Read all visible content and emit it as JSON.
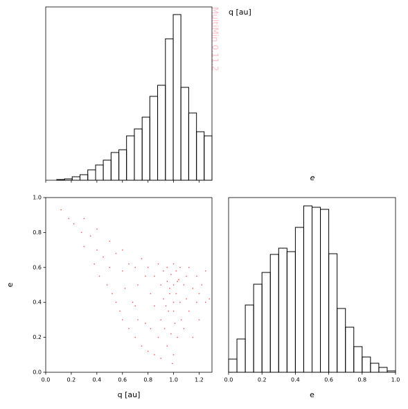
{
  "watermark": "MultiMin 0.11.2",
  "chart_data": [
    {
      "type": "histogram",
      "title": "q [au]",
      "bins": [
        0.086,
        0.147,
        0.207,
        0.268,
        0.329,
        0.39,
        0.45,
        0.511,
        0.572,
        0.632,
        0.693,
        0.754,
        0.814,
        0.875,
        0.936,
        0.997,
        1.057,
        1.118,
        1.179,
        1.239,
        1.3
      ],
      "values": [
        1,
        2,
        5,
        8,
        15,
        22,
        29,
        40,
        44,
        64,
        74,
        91,
        121,
        137,
        204,
        239,
        134,
        97,
        70,
        64
      ],
      "color": "#000000",
      "xlim": [
        0,
        1.3
      ],
      "ylim": [
        0,
        250
      ],
      "xticks": [
        0,
        0.2,
        0.4,
        0.6,
        0.8,
        1,
        1.2
      ],
      "tick_labels": false
    },
    {
      "type": "scatter",
      "xlabel": "q [au]",
      "ylabel": "e",
      "color": "#ff0000",
      "x": [
        0.12,
        0.18,
        0.22,
        0.28,
        0.3,
        0.35,
        0.38,
        0.4,
        0.42,
        0.45,
        0.48,
        0.5,
        0.52,
        0.55,
        0.55,
        0.58,
        0.6,
        0.6,
        0.62,
        0.65,
        0.65,
        0.68,
        0.7,
        0.7,
        0.72,
        0.72,
        0.75,
        0.75,
        0.78,
        0.78,
        0.8,
        0.8,
        0.82,
        0.82,
        0.85,
        0.85,
        0.85,
        0.88,
        0.88,
        0.9,
        0.9,
        0.9,
        0.92,
        0.92,
        0.93,
        0.95,
        0.95,
        0.95,
        0.96,
        0.97,
        0.98,
        0.98,
        1.0,
        1.0,
        1.0,
        1.0,
        1.01,
        1.02,
        1.02,
        1.03,
        1.04,
        1.05,
        1.05,
        1.06,
        1.08,
        1.08,
        1.1,
        1.1,
        1.12,
        1.12,
        1.15,
        1.15,
        1.18,
        1.18,
        1.2,
        1.2,
        1.22,
        1.25,
        1.25,
        1.28,
        0.99,
        1.0,
        0.97,
        1.03,
        0.94,
        0.3,
        0.5,
        0.7,
        0.6,
        0.4
      ],
      "y": [
        0.93,
        0.88,
        0.85,
        0.8,
        0.72,
        0.78,
        0.62,
        0.7,
        0.55,
        0.66,
        0.5,
        0.6,
        0.45,
        0.68,
        0.4,
        0.35,
        0.58,
        0.3,
        0.48,
        0.62,
        0.25,
        0.4,
        0.6,
        0.2,
        0.5,
        0.3,
        0.65,
        0.15,
        0.55,
        0.28,
        0.6,
        0.12,
        0.45,
        0.25,
        0.55,
        0.38,
        0.1,
        0.62,
        0.2,
        0.5,
        0.3,
        0.08,
        0.58,
        0.42,
        0.25,
        0.6,
        0.52,
        0.15,
        0.35,
        0.48,
        0.56,
        0.22,
        0.5,
        0.35,
        0.62,
        0.1,
        0.28,
        0.58,
        0.45,
        0.2,
        0.53,
        0.6,
        0.4,
        0.3,
        0.5,
        0.25,
        0.55,
        0.42,
        0.35,
        0.6,
        0.48,
        0.2,
        0.55,
        0.4,
        0.45,
        0.3,
        0.5,
        0.4,
        0.58,
        0.42,
        0.05,
        0.4,
        0.45,
        0.52,
        0.38,
        0.88,
        0.75,
        0.38,
        0.7,
        0.82
      ],
      "xlim": [
        0,
        1.3
      ],
      "ylim": [
        0,
        1
      ],
      "xticks": [
        {
          "value": 0,
          "label": "0.0"
        },
        0.2,
        0.4,
        0.6,
        0.8,
        {
          "value": 1,
          "label": "1.0"
        },
        1.2
      ],
      "yticks": [
        {
          "value": 0,
          "label": "0.0"
        },
        0.2,
        0.4,
        0.6,
        0.8,
        {
          "value": 1,
          "label": "1.0"
        }
      ]
    },
    {
      "type": "histogram",
      "title": "e",
      "xlabel": "e",
      "bins": [
        0,
        0.05,
        0.1,
        0.15,
        0.2,
        0.25,
        0.3,
        0.35,
        0.4,
        0.45,
        0.5,
        0.55,
        0.6,
        0.65,
        0.7,
        0.75,
        0.8,
        0.85,
        0.9,
        0.95,
        1.0
      ],
      "values": [
        19,
        48,
        97,
        127,
        144,
        170,
        179,
        174,
        209,
        240,
        238,
        235,
        171,
        92,
        65,
        37,
        22,
        13,
        7,
        2
      ],
      "color": "#000000",
      "xlim": [
        0,
        1
      ],
      "ylim": [
        0,
        252
      ],
      "xticks": [
        {
          "value": 0,
          "label": "0.0"
        },
        0.2,
        0.4,
        0.6,
        0.8,
        {
          "value": 1,
          "label": "1.0"
        }
      ]
    }
  ]
}
